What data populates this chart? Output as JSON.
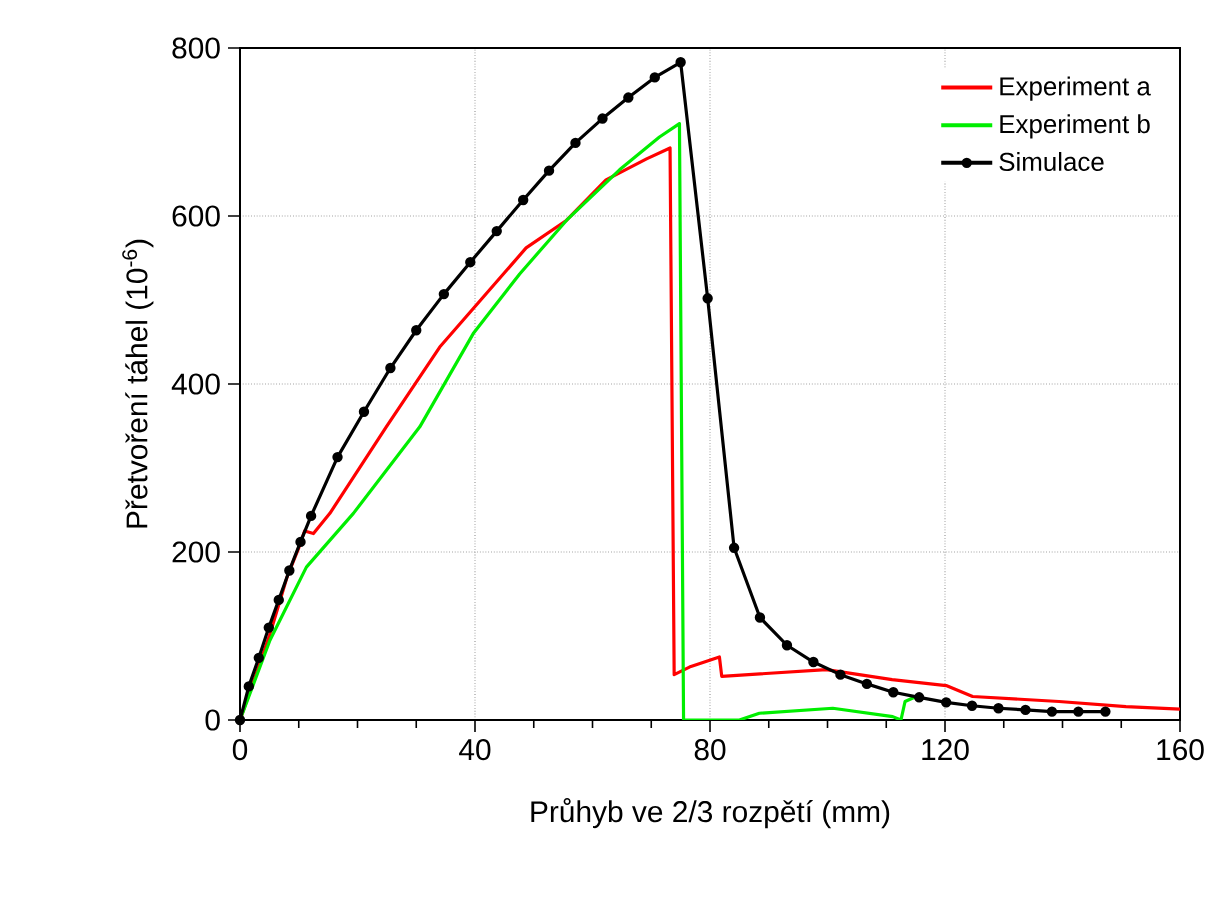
{
  "chart_data": {
    "type": "line",
    "xlabel": "Průhyb ve 2/3 rozpětí (mm)",
    "ylabel": "Přetvoření táhel (10$^{-6}$)",
    "xlim": [
      0,
      160
    ],
    "ylim": [
      0,
      800
    ],
    "xticks": [
      0,
      {
        "value": 10,
        "label": null
      },
      {
        "value": 20,
        "label": null
      },
      {
        "value": 30,
        "label": null
      },
      40,
      {
        "value": 50,
        "label": null
      },
      {
        "value": 60,
        "label": null
      },
      {
        "value": 70,
        "label": null
      },
      80,
      {
        "value": 90,
        "label": null
      },
      {
        "value": 100,
        "label": null
      },
      {
        "value": 110,
        "label": null
      },
      120,
      {
        "value": 130,
        "label": null
      },
      {
        "value": 140,
        "label": null
      },
      {
        "value": 150,
        "label": null
      },
      160
    ],
    "yticks": [
      0,
      200,
      400,
      600,
      800
    ],
    "grid": true,
    "legend": "top right",
    "series": [
      {
        "name": "Experiment a",
        "color": "#ff0000",
        "marker": "none",
        "line_style": "solid",
        "x": [
          0,
          5,
          8,
          10,
          11,
          12.5,
          15.3,
          24.9,
          34,
          48.7,
          55.6,
          62.3,
          69.2,
          73.2,
          73.9,
          76.5,
          81.6,
          82,
          99.8,
          111,
          120.2,
          124.7,
          139.4,
          150.8,
          160
        ],
        "values": [
          0,
          100,
          170,
          205,
          225,
          222,
          246,
          349,
          444,
          562,
          595,
          643,
          668,
          681,
          54,
          63,
          75,
          52,
          60,
          48,
          41,
          28,
          22,
          16,
          13
        ]
      },
      {
        "name": "Experiment b",
        "color": "#00ee00",
        "marker": "none",
        "line_style": "solid",
        "x": [
          0,
          5.1,
          11.3,
          19.3,
          30.6,
          39.7,
          47.6,
          55.6,
          64.6,
          71.4,
          74.8,
          75.5,
          85,
          88.4,
          100.9,
          111.1,
          112.5,
          113.2,
          115.1
        ],
        "values": [
          0,
          95,
          182,
          246,
          349,
          460,
          531,
          595,
          655,
          694,
          710,
          0,
          0,
          8,
          14,
          4,
          0,
          22,
          28
        ]
      },
      {
        "name": "Simulace",
        "color": "#000000",
        "marker": "circle",
        "line_style": "solid",
        "x": [
          0,
          1.5,
          3.2,
          4.9,
          6.6,
          8.4,
          10.3,
          12.1,
          16.6,
          21.1,
          25.6,
          30.0,
          34.7,
          39.2,
          43.7,
          48.2,
          52.6,
          57.1,
          61.7,
          66.1,
          70.6,
          75.0,
          79.6,
          84.1,
          88.5,
          93.1,
          97.6,
          102.2,
          106.7,
          111.2,
          115.6,
          120.2,
          124.6,
          129.1,
          133.7,
          138.2,
          142.7,
          147.3
        ],
        "values": [
          0,
          40,
          74,
          110,
          143,
          178,
          212,
          243,
          313,
          367,
          419,
          464,
          507,
          545,
          582,
          619,
          654,
          687,
          716,
          741,
          765,
          783,
          502,
          205,
          122,
          89,
          69,
          54,
          43,
          33,
          27,
          21,
          17,
          14,
          12,
          10,
          10,
          10
        ]
      }
    ]
  }
}
